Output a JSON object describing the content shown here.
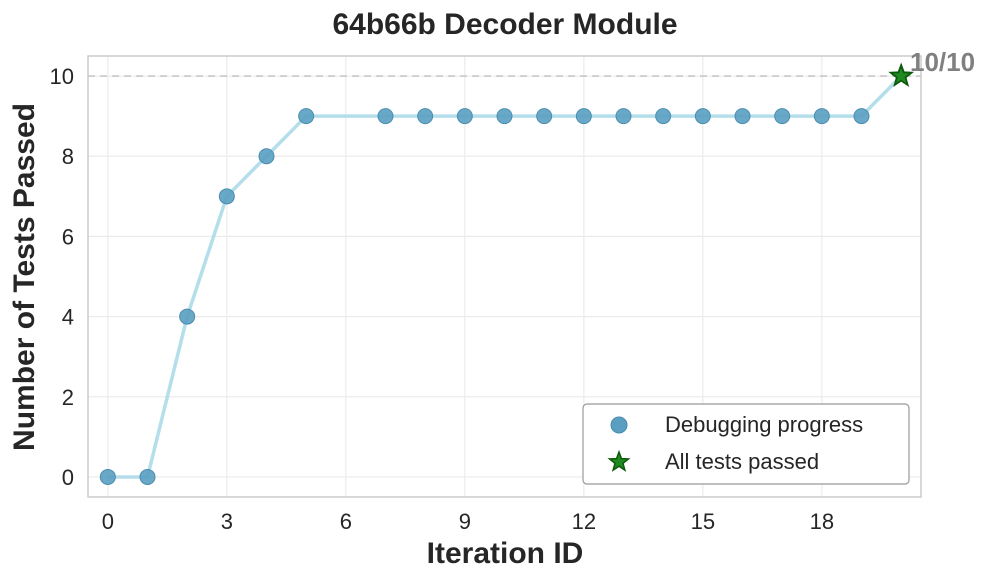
{
  "chart_data": {
    "type": "line",
    "title": "64b66b Decoder Module",
    "xlabel": "Iteration ID",
    "ylabel": "Number of Tests Passed",
    "xlim": [
      -0.5,
      20.5
    ],
    "ylim": [
      -0.5,
      10.5
    ],
    "x_ticks": [
      "0",
      "3",
      "6",
      "9",
      "12",
      "15",
      "18"
    ],
    "x_tick_values": [
      0,
      3,
      6,
      9,
      12,
      15,
      18
    ],
    "y_ticks": [
      "0",
      "2",
      "4",
      "6",
      "8",
      "10"
    ],
    "y_tick_values": [
      0,
      2,
      4,
      6,
      8,
      10
    ],
    "grid": true,
    "reference_line": 10,
    "series": [
      {
        "name": "Debugging progress",
        "x": [
          0,
          1,
          2,
          3,
          4,
          5,
          7,
          8,
          9,
          10,
          11,
          12,
          13,
          14,
          15,
          16,
          17,
          18,
          19
        ],
        "y": [
          0,
          0,
          4,
          7,
          8,
          9,
          9,
          9,
          9,
          9,
          9,
          9,
          9,
          9,
          9,
          9,
          9,
          9,
          9
        ]
      },
      {
        "name": "All tests passed",
        "x": [
          20
        ],
        "y": [
          10
        ]
      }
    ],
    "final_annotation": "10/10",
    "legend_placement": "bottom-right",
    "colors": {
      "line": "#a8d8e8",
      "marker": "#5a9fc1",
      "marker_edge": "#4a8db0",
      "star": "#1f8a1f",
      "star_edge": "#0d5a0d",
      "reference": "#c8c8c8"
    }
  }
}
